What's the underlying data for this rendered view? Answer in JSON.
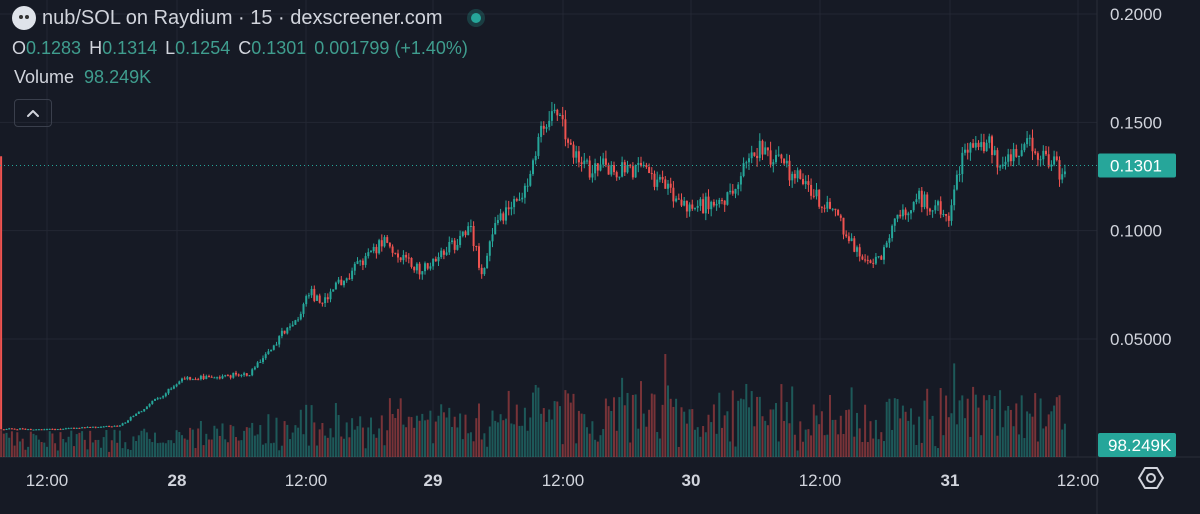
{
  "legend": {
    "title": "nub/SOL on Raydium · 15 · dexscreener.com",
    "open_label": "O",
    "open": "0.1283",
    "high_label": "H",
    "high": "0.1314",
    "low_label": "L",
    "low": "0.1254",
    "close_label": "C",
    "close": "0.1301",
    "change": "0.001799 (+1.40%)",
    "volume_label": "Volume",
    "volume": "98.249K",
    "collapse_icon": "chevron-up-icon"
  },
  "colors": {
    "background": "#161a25",
    "up": "#26a69a",
    "down": "#ef5350",
    "grid": "#232733",
    "axis_text": "#d1d4dc",
    "price_tag": "#26a69a"
  },
  "chart_data": {
    "type": "candlestick",
    "interval": "15",
    "y_ticks": [
      0.2,
      0.15,
      0.1,
      0.05
    ],
    "y_tick_labels": [
      "0.2000",
      "0.1500",
      "0.1000",
      "0.05000"
    ],
    "ylim": [
      0.0,
      0.2
    ],
    "last_price": 0.1301,
    "last_price_label": "0.1301",
    "last_volume_label": "98.249K",
    "x_ticks": [
      "12:00",
      "28",
      "12:00",
      "29",
      "12:00",
      "30",
      "12:00",
      "31",
      "12:00"
    ],
    "x_tick_bold": [
      false,
      true,
      false,
      true,
      false,
      true,
      false,
      true,
      false
    ],
    "price_path": {
      "bars_per_day": 96,
      "bars": 490,
      "start_hour": 5.5,
      "keyframes": [
        [
          0,
          0.0085
        ],
        [
          50,
          0.0083
        ],
        [
          120,
          0.0099
        ],
        [
          165,
          0.025
        ],
        [
          180,
          0.031
        ],
        [
          250,
          0.034
        ],
        [
          270,
          0.045
        ],
        [
          285,
          0.054
        ],
        [
          300,
          0.061
        ],
        [
          310,
          0.072
        ],
        [
          320,
          0.067
        ],
        [
          345,
          0.078
        ],
        [
          385,
          0.095
        ],
        [
          420,
          0.082
        ],
        [
          458,
          0.095
        ],
        [
          470,
          0.102
        ],
        [
          482,
          0.08
        ],
        [
          496,
          0.104
        ],
        [
          520,
          0.113
        ],
        [
          548,
          0.155
        ],
        [
          562,
          0.148
        ],
        [
          580,
          0.129
        ],
        [
          625,
          0.129
        ],
        [
          650,
          0.126
        ],
        [
          690,
          0.109
        ],
        [
          725,
          0.116
        ],
        [
          760,
          0.138
        ],
        [
          800,
          0.124
        ],
        [
          830,
          0.11
        ],
        [
          860,
          0.089
        ],
        [
          880,
          0.085
        ],
        [
          895,
          0.103
        ],
        [
          920,
          0.115
        ],
        [
          950,
          0.108
        ],
        [
          965,
          0.139
        ],
        [
          990,
          0.142
        ],
        [
          1000,
          0.126
        ],
        [
          1010,
          0.133
        ],
        [
          1030,
          0.141
        ],
        [
          1060,
          0.127
        ],
        [
          1070,
          0.13
        ]
      ]
    }
  },
  "settings_icon": "hexagon-settings-icon"
}
